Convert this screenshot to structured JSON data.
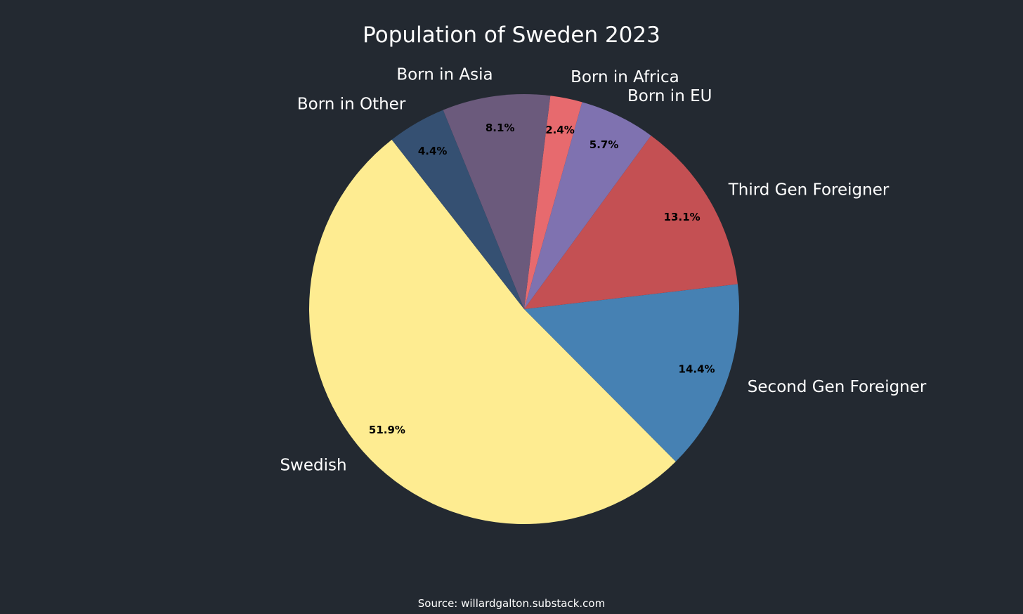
{
  "chart_data": {
    "type": "pie",
    "title": "Population of Sweden 2023",
    "source": "Source: willardgalton.substack.com",
    "background": "#232931",
    "slices": [
      {
        "label": "Swedish",
        "value": 51.9,
        "pct_label": "51.9%",
        "color": "#FEEC91"
      },
      {
        "label": "Second Gen Foreigner",
        "value": 14.4,
        "pct_label": "14.4%",
        "color": "#4681B3"
      },
      {
        "label": "Third Gen Foreigner",
        "value": 13.1,
        "pct_label": "13.1%",
        "color": "#C45053"
      },
      {
        "label": "Born in EU",
        "value": 5.7,
        "pct_label": "5.7%",
        "color": "#7F72B0"
      },
      {
        "label": "Born in Africa",
        "value": 2.4,
        "pct_label": "2.4%",
        "color": "#E76A6E"
      },
      {
        "label": "Born in Asia",
        "value": 8.1,
        "pct_label": "8.1%",
        "color": "#6B5A7C"
      },
      {
        "label": "Born in Other",
        "value": 4.4,
        "pct_label": "4.4%",
        "color": "#355072"
      }
    ]
  }
}
